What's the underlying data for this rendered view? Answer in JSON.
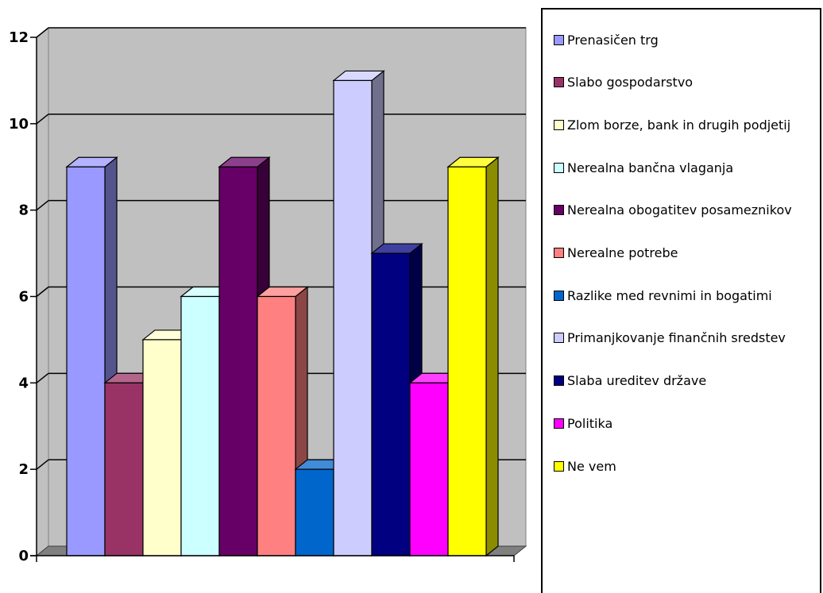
{
  "chart_data": {
    "type": "bar",
    "categories": [
      "Prenasičen trg",
      "Slabo gospodarstvo",
      "Zlom borze, bank in drugih podjetij",
      "Nerealna bančna vlaganja",
      "Nerealna obogatitev posameznikov",
      "Nerealne potrebe",
      "Razlike med revnimi in bogatimi",
      "Primanjkovanje finančnih sredstev",
      "Slaba ureditev države",
      "Politika",
      "Ne vem"
    ],
    "values": [
      9,
      4,
      5,
      6,
      9,
      6,
      2,
      11,
      7,
      4,
      9
    ],
    "colors": [
      "#9999ff",
      "#993366",
      "#ffffcc",
      "#ccffff",
      "#660066",
      "#ff8080",
      "#0066cc",
      "#ccccff",
      "#000080",
      "#ff00ff",
      "#ffff00"
    ],
    "title": "",
    "xlabel": "",
    "ylabel": "",
    "ylim": [
      0,
      12
    ],
    "yticks": [
      "0",
      "2",
      "4",
      "6",
      "8",
      "10",
      "12"
    ],
    "grid": true,
    "legend_position": "right",
    "style": "3d-column"
  }
}
